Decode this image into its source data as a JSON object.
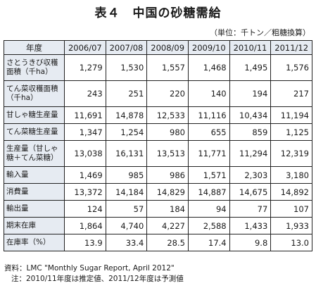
{
  "title": "表４　中国の砂糖需給",
  "unit": "（単位：千トン／粗糖換算）",
  "table": {
    "corner": "年度",
    "years": [
      "2006/07",
      "2007/08",
      "2008/09",
      "2009/10",
      "2010/11",
      "2011/12"
    ],
    "rows": [
      {
        "label": "さとうきび収穫面積（千ha）",
        "values": [
          "1,279",
          "1,530",
          "1,557",
          "1,468",
          "1,495",
          "1,576"
        ]
      },
      {
        "label": "てん菜収穫面積（千ha）",
        "values": [
          "243",
          "251",
          "220",
          "140",
          "194",
          "217"
        ]
      },
      {
        "label": "甘しゃ糖生産量",
        "values": [
          "11,691",
          "14,878",
          "12,533",
          "11,116",
          "10,434",
          "11,194"
        ]
      },
      {
        "label": "てん菜糖生産量",
        "values": [
          "1,347",
          "1,254",
          "980",
          "655",
          "859",
          "1,125"
        ]
      },
      {
        "label": "生産量（甘しゃ糖＋てん菜糖）",
        "values": [
          "13,038",
          "16,131",
          "13,513",
          "11,771",
          "11,294",
          "12,319"
        ]
      },
      {
        "label": "輸入量",
        "values": [
          "1,469",
          "985",
          "986",
          "1,571",
          "2,303",
          "3,180"
        ]
      },
      {
        "label": "消費量",
        "values": [
          "13,372",
          "14,184",
          "14,829",
          "14,887",
          "14,675",
          "14,892"
        ]
      },
      {
        "label": "輸出量",
        "values": [
          "124",
          "57",
          "184",
          "94",
          "77",
          "107"
        ]
      },
      {
        "label": "期末在庫",
        "values": [
          "1,864",
          "4,740",
          "4,227",
          "2,588",
          "1,433",
          "1,933"
        ]
      },
      {
        "label": "在庫率（%）",
        "values": [
          "13.9",
          "33.4",
          "28.5",
          "17.4",
          "9.8",
          "13.0"
        ]
      }
    ]
  },
  "notes": {
    "source": "資料：LMC \"Monthly Sugar Report, April 2012\"",
    "note": "注：2010/11年度は推定値、2011/12年度は予測値"
  }
}
